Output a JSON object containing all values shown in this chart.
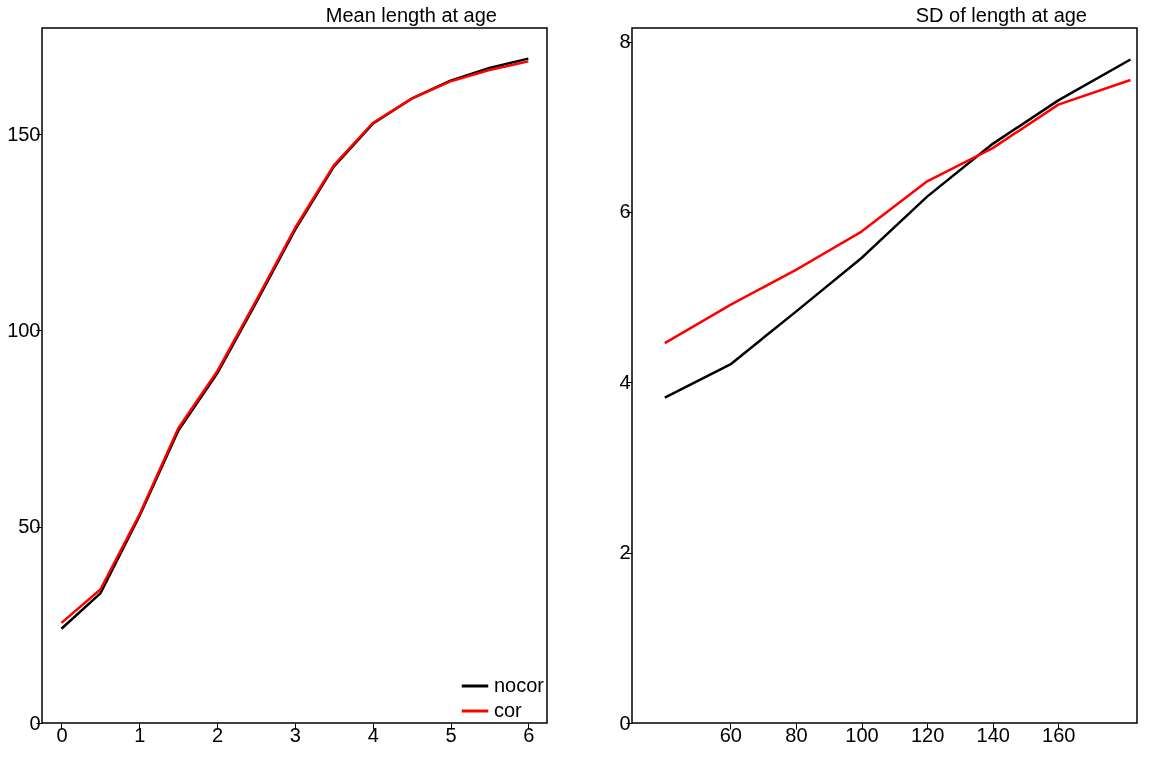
{
  "chart_data": [
    {
      "type": "line",
      "title": "Mean length at age",
      "x": [
        0,
        0.5,
        1,
        1.5,
        2,
        2.5,
        3,
        3.5,
        4,
        4.5,
        5,
        5.5,
        6
      ],
      "series": [
        {
          "name": "nocor",
          "color": "#000000",
          "values": [
            24.0,
            33,
            52.6,
            74.4,
            89,
            107,
            125.5,
            141.7,
            152.6,
            159,
            163.6,
            166.8,
            169.2
          ]
        },
        {
          "name": "cor",
          "color": "#ff0000",
          "values": [
            25.5,
            34,
            53,
            75,
            89.5,
            107.5,
            126,
            142,
            152.8,
            159,
            163.4,
            166.3,
            168.5
          ]
        }
      ],
      "xlim": [
        -0.25,
        6.24
      ],
      "ylim": [
        0,
        177
      ],
      "xticks": [
        0,
        1,
        2,
        3,
        4,
        5,
        6
      ],
      "yticks": [
        0,
        50,
        100,
        150
      ],
      "grid": false,
      "legend": "bottom right"
    },
    {
      "type": "line",
      "title": "SD of length at age",
      "x": [
        40,
        60,
        80,
        100,
        120,
        140,
        160,
        182
      ],
      "series": [
        {
          "color": "#000000",
          "values": [
            3.82,
            4.21,
            4.83,
            5.46,
            6.18,
            6.8,
            7.31,
            7.79
          ]
        },
        {
          "color": "#ff0000",
          "values": [
            4.46,
            4.91,
            5.32,
            5.77,
            6.36,
            6.75,
            7.26,
            7.55
          ]
        }
      ],
      "xlim": [
        30,
        184
      ],
      "ylim": [
        0,
        8.16
      ],
      "xticks": [
        60,
        80,
        100,
        120,
        140,
        160
      ],
      "yticks": [
        0,
        2,
        4,
        6,
        8
      ],
      "grid": false
    }
  ]
}
